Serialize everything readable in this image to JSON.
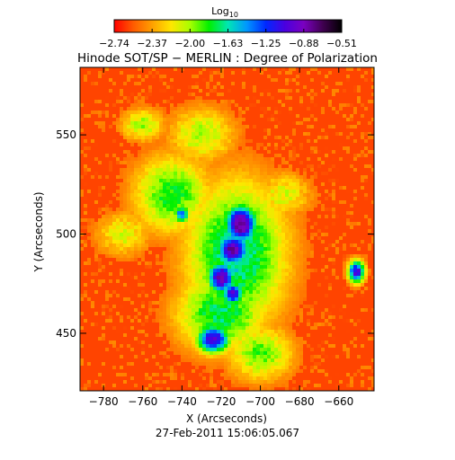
{
  "colorbar": {
    "label": "Log",
    "label_subscript": "10",
    "tick_labels": [
      "−2.74",
      "−2.37",
      "−2.00",
      "−1.63",
      "−1.25",
      "−0.88",
      "−0.51"
    ],
    "range": [
      -2.74,
      -0.51
    ],
    "colormap": [
      "#ff0000",
      "#ff5a00",
      "#ffa000",
      "#ffe600",
      "#a8ff00",
      "#00f000",
      "#00e6b4",
      "#0096ff",
      "#0028ff",
      "#4a00e0",
      "#7a00c0",
      "#400050",
      "#000000"
    ]
  },
  "chart_data": {
    "type": "heatmap",
    "title": "Hinode SOT/SP − MERLIN : Degree of Polarization",
    "xlabel": "X (Arcseconds)",
    "ylabel": "Y (Arcseconds)",
    "xlim": [
      -792,
      -642
    ],
    "ylim": [
      421,
      584
    ],
    "xticks": [
      -780,
      -760,
      -740,
      -720,
      -700,
      -680,
      -660
    ],
    "xtick_labels": [
      "−780",
      "−760",
      "−740",
      "−720",
      "−700",
      "−680",
      "−660"
    ],
    "yticks": [
      450,
      500,
      550
    ],
    "ytick_labels": [
      "450",
      "500",
      "550"
    ],
    "value_range": [
      -2.74,
      -0.51
    ],
    "background_level": -2.6,
    "features": [
      {
        "x": -710,
        "y": 505,
        "sx": 6,
        "sy": 7,
        "level": -0.7
      },
      {
        "x": -714,
        "y": 492,
        "sx": 6,
        "sy": 6,
        "level": -0.8
      },
      {
        "x": -720,
        "y": 478,
        "sx": 5,
        "sy": 6,
        "level": -0.85
      },
      {
        "x": -724,
        "y": 447,
        "sx": 6,
        "sy": 5,
        "level": -0.95
      },
      {
        "x": -714,
        "y": 470,
        "sx": 4,
        "sy": 4,
        "level": -1.0
      },
      {
        "x": -651,
        "y": 481,
        "sx": 3,
        "sy": 4,
        "level": -1.0
      },
      {
        "x": -740,
        "y": 510,
        "sx": 3,
        "sy": 3,
        "level": -1.3
      },
      {
        "x": -712,
        "y": 490,
        "sx": 18,
        "sy": 26,
        "level": -1.6
      },
      {
        "x": -720,
        "y": 460,
        "sx": 16,
        "sy": 14,
        "level": -1.7
      },
      {
        "x": -745,
        "y": 520,
        "sx": 14,
        "sy": 14,
        "level": -1.8
      },
      {
        "x": -700,
        "y": 440,
        "sx": 12,
        "sy": 10,
        "level": -1.9
      },
      {
        "x": -730,
        "y": 550,
        "sx": 12,
        "sy": 10,
        "level": -2.0
      },
      {
        "x": -760,
        "y": 555,
        "sx": 8,
        "sy": 6,
        "level": -2.0
      },
      {
        "x": -770,
        "y": 500,
        "sx": 10,
        "sy": 8,
        "level": -2.1
      },
      {
        "x": -688,
        "y": 520,
        "sx": 10,
        "sy": 8,
        "level": -2.1
      }
    ]
  },
  "timestamp": "27-Feb-2011 15:06:05.067"
}
